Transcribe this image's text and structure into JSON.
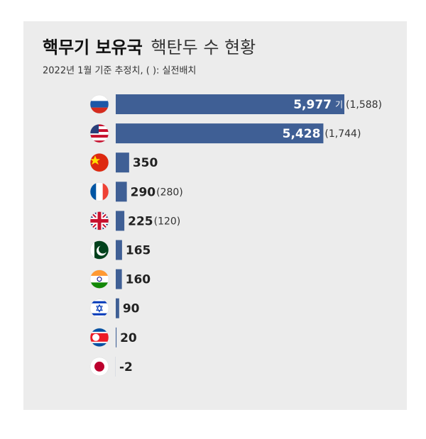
{
  "chart_data": {
    "type": "bar",
    "orientation": "horizontal",
    "title": "핵무기 보유국",
    "title_rest": "핵탄두 수 현황",
    "subtitle": "2022년 1월 기준 추정치, ( ): 실전배치",
    "categories": [
      null,
      null,
      null,
      null,
      null,
      null,
      null,
      null,
      null,
      null
    ],
    "values": [
      5977,
      5428,
      350,
      290,
      225,
      165,
      160,
      90,
      20,
      -2
    ],
    "value_labels": [
      "5,977",
      "5,428",
      "350",
      "290",
      "225",
      "165",
      "160",
      "90",
      "20",
      "-2"
    ],
    "unit_label": "기",
    "deployed_values": [
      1588,
      1744,
      null,
      280,
      120,
      null,
      null,
      null,
      null,
      null
    ],
    "deployed_labels": [
      "(1,588)",
      "(1,744)",
      null,
      "(280)",
      "(120)",
      null,
      null,
      null,
      null,
      null
    ],
    "color": "#3f5f95"
  }
}
